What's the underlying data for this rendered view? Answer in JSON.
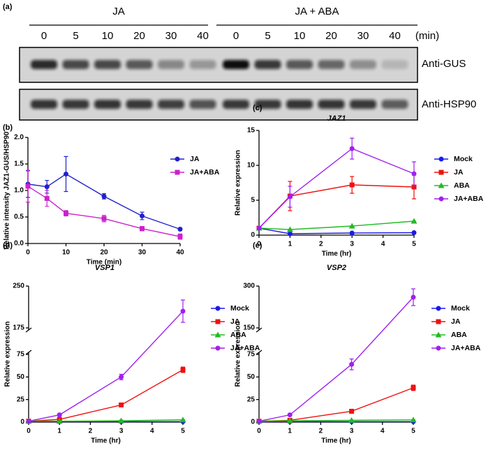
{
  "blot": {
    "panel_label": "(a)",
    "groups": [
      {
        "label": "JA",
        "times": [
          0,
          5,
          10,
          20,
          30,
          40
        ]
      },
      {
        "label": "JA + ABA",
        "times": [
          0,
          5,
          10,
          20,
          30,
          40
        ]
      }
    ],
    "unit": "(min)",
    "antibodies": [
      "Anti-GUS",
      "Anti-HSP90"
    ]
  },
  "chart_data": [
    {
      "type": "line",
      "panel_label": "(b)",
      "x_label": "Time (min)",
      "y_label": "Relative intensity JAZ1-GUS/HSP90",
      "x": [
        0,
        5,
        10,
        20,
        30,
        40
      ],
      "xlim": [
        0,
        40
      ],
      "xticks": [
        0,
        10,
        20,
        30,
        40
      ],
      "ylim": [
        0,
        2
      ],
      "yticks": [
        {
          "value": 0,
          "label": "0.0"
        },
        {
          "value": 0.5,
          "label": "0.5"
        },
        {
          "value": 1,
          "label": "1.0"
        },
        {
          "value": 1.5,
          "label": "1.5"
        },
        {
          "value": 2,
          "label": "2.0"
        }
      ],
      "series": [
        {
          "name": "JA",
          "color": "#2020cc",
          "marker": "circle",
          "values": [
            1.12,
            1.07,
            1.31,
            0.89,
            0.52,
            0.27
          ],
          "errors": [
            0.25,
            0.12,
            0.33,
            0.05,
            0.07,
            0.02
          ]
        },
        {
          "name": "JA+ABA",
          "color": "#cc22cc",
          "marker": "square",
          "values": [
            1.08,
            0.85,
            0.57,
            0.47,
            0.28,
            0.13
          ],
          "errors": [
            0.3,
            0.15,
            0.05,
            0.06,
            0.04,
            0.05
          ]
        }
      ]
    },
    {
      "type": "line",
      "panel_label": "(c)",
      "title": "JAZ1",
      "x_label": "Time (hr)",
      "y_label": "Relative expression",
      "x": [
        0,
        1,
        3,
        5
      ],
      "xlim": [
        0,
        5
      ],
      "xticks": [
        0,
        1,
        2,
        3,
        4,
        5
      ],
      "ylim": [
        0,
        15
      ],
      "yticks": [
        0,
        5,
        10,
        15
      ],
      "series": [
        {
          "name": "Mock",
          "color": "#1a1aee",
          "marker": "circle",
          "values": [
            1,
            0.2,
            0.3,
            0.35
          ],
          "errors": [
            0,
            0,
            0,
            0
          ]
        },
        {
          "name": "JA",
          "color": "#ee1111",
          "marker": "square",
          "values": [
            1,
            5.6,
            7.2,
            6.9
          ],
          "errors": [
            0,
            2.1,
            1.2,
            1.7
          ]
        },
        {
          "name": "ABA",
          "color": "#22bb22",
          "marker": "triangle",
          "values": [
            1,
            0.8,
            1.3,
            2.0
          ],
          "errors": [
            0,
            0,
            0,
            0
          ]
        },
        {
          "name": "JA+ABA",
          "color": "#a020f0",
          "marker": "circle",
          "values": [
            1,
            5.5,
            12.4,
            8.8
          ],
          "errors": [
            0,
            1.5,
            1.5,
            1.7
          ]
        }
      ]
    },
    {
      "type": "line",
      "panel_label": "(d)",
      "title": "VSP1",
      "x_label": "Time (hr)",
      "y_label": "Relative expression",
      "x": [
        0,
        1,
        3,
        5
      ],
      "xlim": [
        0,
        5
      ],
      "xticks": [
        0,
        1,
        2,
        3,
        4,
        5
      ],
      "ylim": [
        0,
        250
      ],
      "ybreak": [
        75,
        175
      ],
      "yticks": [
        0,
        25,
        50,
        75,
        175,
        250
      ],
      "series": [
        {
          "name": "Mock",
          "color": "#1a1aee",
          "marker": "circle",
          "values": [
            1,
            0.5,
            0.5,
            0.5
          ],
          "errors": [
            0,
            0,
            0,
            0
          ]
        },
        {
          "name": "JA",
          "color": "#ee1111",
          "marker": "square",
          "values": [
            1,
            3,
            19,
            58
          ],
          "errors": [
            0,
            0.5,
            1,
            3
          ]
        },
        {
          "name": "ABA",
          "color": "#22bb22",
          "marker": "triangle",
          "values": [
            1,
            1,
            1.5,
            2.5
          ],
          "errors": [
            0,
            0,
            0,
            0
          ]
        },
        {
          "name": "JA+ABA",
          "color": "#a020f0",
          "marker": "circle",
          "values": [
            1,
            8,
            50,
            205
          ],
          "errors": [
            0,
            1,
            3,
            20
          ]
        }
      ]
    },
    {
      "type": "line",
      "panel_label": "(e)",
      "title": "VSP2",
      "x_label": "Time (hr)",
      "y_label": "Relative expression",
      "x": [
        0,
        1,
        3,
        5
      ],
      "xlim": [
        0,
        5
      ],
      "xticks": [
        0,
        1,
        2,
        3,
        4,
        5
      ],
      "ylim": [
        0,
        300
      ],
      "ybreak": [
        75,
        150
      ],
      "yticks": [
        0,
        25,
        50,
        75,
        150,
        300
      ],
      "series": [
        {
          "name": "Mock",
          "color": "#1a1aee",
          "marker": "circle",
          "values": [
            0.5,
            0.5,
            0.5,
            0.5
          ],
          "errors": [
            0,
            0,
            0,
            0
          ]
        },
        {
          "name": "JA",
          "color": "#ee1111",
          "marker": "square",
          "values": [
            1,
            2,
            12,
            38
          ],
          "errors": [
            0,
            0.3,
            1,
            3
          ]
        },
        {
          "name": "ABA",
          "color": "#22bb22",
          "marker": "triangle",
          "values": [
            1,
            1.5,
            2,
            2.5
          ],
          "errors": [
            0,
            0,
            0,
            0
          ]
        },
        {
          "name": "JA+ABA",
          "color": "#a020f0",
          "marker": "circle",
          "values": [
            1,
            8,
            64,
            260
          ],
          "errors": [
            0,
            1,
            6,
            30
          ]
        }
      ]
    }
  ]
}
